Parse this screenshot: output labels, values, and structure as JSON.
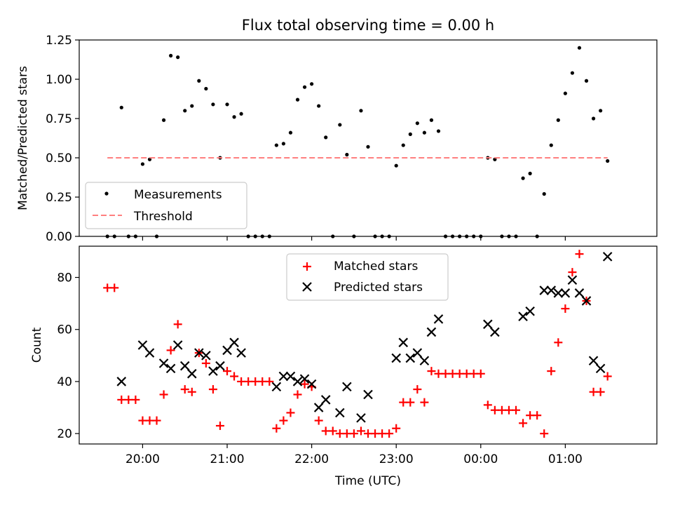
{
  "figure": {
    "title": "Flux total observing time = 0.00 h",
    "xlabel": "Time (UTC)",
    "xtick_labels": [
      "20:00",
      "21:00",
      "22:00",
      "23:00",
      "00:00",
      "01:00"
    ]
  },
  "chart_data": [
    {
      "type": "scatter",
      "ylabel": "Matched/Predicted stars",
      "ylim": [
        0,
        1.25
      ],
      "xlim": [
        "19:15",
        "02:05"
      ],
      "ytick_labels": [
        "0.00",
        "0.25",
        "0.50",
        "0.75",
        "1.00",
        "1.25"
      ],
      "legend_position": "lower-left",
      "series": [
        {
          "name": "Measurements",
          "marker": "dot",
          "color": "#000000",
          "points": [
            [
              "19:35",
              0.0
            ],
            [
              "19:40",
              0.0
            ],
            [
              "19:45",
              0.82
            ],
            [
              "19:50",
              0.0
            ],
            [
              "19:55",
              0.0
            ],
            [
              "20:00",
              0.46
            ],
            [
              "20:05",
              0.49
            ],
            [
              "20:10",
              0.0
            ],
            [
              "20:15",
              0.74
            ],
            [
              "20:20",
              1.15
            ],
            [
              "20:25",
              1.14
            ],
            [
              "20:30",
              0.8
            ],
            [
              "20:35",
              0.83
            ],
            [
              "20:40",
              0.99
            ],
            [
              "20:45",
              0.94
            ],
            [
              "20:50",
              0.84
            ],
            [
              "20:55",
              0.5
            ],
            [
              "21:00",
              0.84
            ],
            [
              "21:05",
              0.76
            ],
            [
              "21:10",
              0.78
            ],
            [
              "21:15",
              0.0
            ],
            [
              "21:20",
              0.0
            ],
            [
              "21:25",
              0.0
            ],
            [
              "21:30",
              0.0
            ],
            [
              "21:35",
              0.58
            ],
            [
              "21:40",
              0.59
            ],
            [
              "21:45",
              0.66
            ],
            [
              "21:50",
              0.87
            ],
            [
              "21:55",
              0.95
            ],
            [
              "22:00",
              0.97
            ],
            [
              "22:05",
              0.83
            ],
            [
              "22:10",
              0.63
            ],
            [
              "22:15",
              0.0
            ],
            [
              "22:20",
              0.71
            ],
            [
              "22:25",
              0.52
            ],
            [
              "22:30",
              0.0
            ],
            [
              "22:35",
              0.8
            ],
            [
              "22:40",
              0.57
            ],
            [
              "22:45",
              0.0
            ],
            [
              "22:50",
              0.0
            ],
            [
              "22:55",
              0.0
            ],
            [
              "23:00",
              0.45
            ],
            [
              "23:05",
              0.58
            ],
            [
              "23:10",
              0.65
            ],
            [
              "23:15",
              0.72
            ],
            [
              "23:20",
              0.66
            ],
            [
              "23:25",
              0.74
            ],
            [
              "23:30",
              0.67
            ],
            [
              "23:35",
              0.0
            ],
            [
              "23:40",
              0.0
            ],
            [
              "23:45",
              0.0
            ],
            [
              "23:50",
              0.0
            ],
            [
              "23:55",
              0.0
            ],
            [
              "00:00",
              0.0
            ],
            [
              "00:05",
              0.5
            ],
            [
              "00:10",
              0.49
            ],
            [
              "00:15",
              0.0
            ],
            [
              "00:20",
              0.0
            ],
            [
              "00:25",
              0.0
            ],
            [
              "00:30",
              0.37
            ],
            [
              "00:35",
              0.4
            ],
            [
              "00:40",
              0.0
            ],
            [
              "00:45",
              0.27
            ],
            [
              "00:50",
              0.58
            ],
            [
              "00:55",
              0.74
            ],
            [
              "01:00",
              0.91
            ],
            [
              "01:05",
              1.04
            ],
            [
              "01:10",
              1.2
            ],
            [
              "01:15",
              0.99
            ],
            [
              "01:20",
              0.75
            ],
            [
              "01:25",
              0.8
            ],
            [
              "01:30",
              0.48
            ]
          ]
        },
        {
          "name": "Threshold",
          "line": "dashed",
          "color": "#ff7f7f",
          "points": [
            [
              "19:35",
              0.5
            ],
            [
              "01:30",
              0.5
            ]
          ]
        }
      ]
    },
    {
      "type": "scatter",
      "ylabel": "Count",
      "ylim": [
        16,
        92
      ],
      "xlim": [
        "19:15",
        "02:05"
      ],
      "ytick_labels": [
        "20",
        "40",
        "60",
        "80"
      ],
      "legend_position": "upper-center",
      "series": [
        {
          "name": "Matched stars",
          "marker": "plus",
          "color": "#ff0000",
          "points": [
            [
              "19:35",
              76
            ],
            [
              "19:40",
              76
            ],
            [
              "19:45",
              33
            ],
            [
              "19:50",
              33
            ],
            [
              "19:55",
              33
            ],
            [
              "20:00",
              25
            ],
            [
              "20:05",
              25
            ],
            [
              "20:10",
              25
            ],
            [
              "20:15",
              35
            ],
            [
              "20:20",
              52
            ],
            [
              "20:25",
              62
            ],
            [
              "20:30",
              37
            ],
            [
              "20:35",
              36
            ],
            [
              "20:40",
              51
            ],
            [
              "20:45",
              47
            ],
            [
              "20:50",
              37
            ],
            [
              "20:55",
              23
            ],
            [
              "21:00",
              44
            ],
            [
              "21:05",
              42
            ],
            [
              "21:10",
              40
            ],
            [
              "21:15",
              40
            ],
            [
              "21:20",
              40
            ],
            [
              "21:25",
              40
            ],
            [
              "21:30",
              40
            ],
            [
              "21:35",
              22
            ],
            [
              "21:40",
              25
            ],
            [
              "21:45",
              28
            ],
            [
              "21:50",
              35
            ],
            [
              "21:55",
              39
            ],
            [
              "22:00",
              38
            ],
            [
              "22:05",
              25
            ],
            [
              "22:10",
              21
            ],
            [
              "22:15",
              21
            ],
            [
              "22:20",
              20
            ],
            [
              "22:25",
              20
            ],
            [
              "22:30",
              20
            ],
            [
              "22:35",
              21
            ],
            [
              "22:40",
              20
            ],
            [
              "22:45",
              20
            ],
            [
              "22:50",
              20
            ],
            [
              "22:55",
              20
            ],
            [
              "23:00",
              22
            ],
            [
              "23:05",
              32
            ],
            [
              "23:10",
              32
            ],
            [
              "23:15",
              37
            ],
            [
              "23:20",
              32
            ],
            [
              "23:25",
              44
            ],
            [
              "23:30",
              43
            ],
            [
              "23:35",
              43
            ],
            [
              "23:40",
              43
            ],
            [
              "23:45",
              43
            ],
            [
              "23:50",
              43
            ],
            [
              "23:55",
              43
            ],
            [
              "00:00",
              43
            ],
            [
              "00:05",
              31
            ],
            [
              "00:10",
              29
            ],
            [
              "00:15",
              29
            ],
            [
              "00:20",
              29
            ],
            [
              "00:25",
              29
            ],
            [
              "00:30",
              24
            ],
            [
              "00:35",
              27
            ],
            [
              "00:40",
              27
            ],
            [
              "00:45",
              20
            ],
            [
              "00:50",
              44
            ],
            [
              "00:55",
              55
            ],
            [
              "01:00",
              68
            ],
            [
              "01:05",
              82
            ],
            [
              "01:10",
              89
            ],
            [
              "01:15",
              71
            ],
            [
              "01:20",
              36
            ],
            [
              "01:25",
              36
            ],
            [
              "01:30",
              42
            ]
          ]
        },
        {
          "name": "Predicted stars",
          "marker": "x",
          "color": "#000000",
          "points": [
            [
              "19:45",
              40
            ],
            [
              "20:00",
              54
            ],
            [
              "20:05",
              51
            ],
            [
              "20:15",
              47
            ],
            [
              "20:20",
              45
            ],
            [
              "20:25",
              54
            ],
            [
              "20:30",
              46
            ],
            [
              "20:35",
              43
            ],
            [
              "20:40",
              51
            ],
            [
              "20:45",
              50
            ],
            [
              "20:50",
              44
            ],
            [
              "20:55",
              46
            ],
            [
              "21:00",
              52
            ],
            [
              "21:05",
              55
            ],
            [
              "21:10",
              51
            ],
            [
              "21:35",
              38
            ],
            [
              "21:40",
              42
            ],
            [
              "21:45",
              42
            ],
            [
              "21:50",
              40
            ],
            [
              "21:55",
              41
            ],
            [
              "22:00",
              39
            ],
            [
              "22:05",
              30
            ],
            [
              "22:10",
              33
            ],
            [
              "22:20",
              28
            ],
            [
              "22:25",
              38
            ],
            [
              "22:35",
              26
            ],
            [
              "22:40",
              35
            ],
            [
              "23:00",
              49
            ],
            [
              "23:05",
              55
            ],
            [
              "23:10",
              49
            ],
            [
              "23:15",
              51
            ],
            [
              "23:20",
              48
            ],
            [
              "23:25",
              59
            ],
            [
              "23:30",
              64
            ],
            [
              "00:05",
              62
            ],
            [
              "00:10",
              59
            ],
            [
              "00:30",
              65
            ],
            [
              "00:35",
              67
            ],
            [
              "00:45",
              75
            ],
            [
              "00:50",
              75
            ],
            [
              "00:55",
              74
            ],
            [
              "01:00",
              74
            ],
            [
              "01:05",
              79
            ],
            [
              "01:10",
              74
            ],
            [
              "01:15",
              71
            ],
            [
              "01:20",
              48
            ],
            [
              "01:25",
              45
            ],
            [
              "01:30",
              88
            ]
          ]
        }
      ]
    }
  ]
}
